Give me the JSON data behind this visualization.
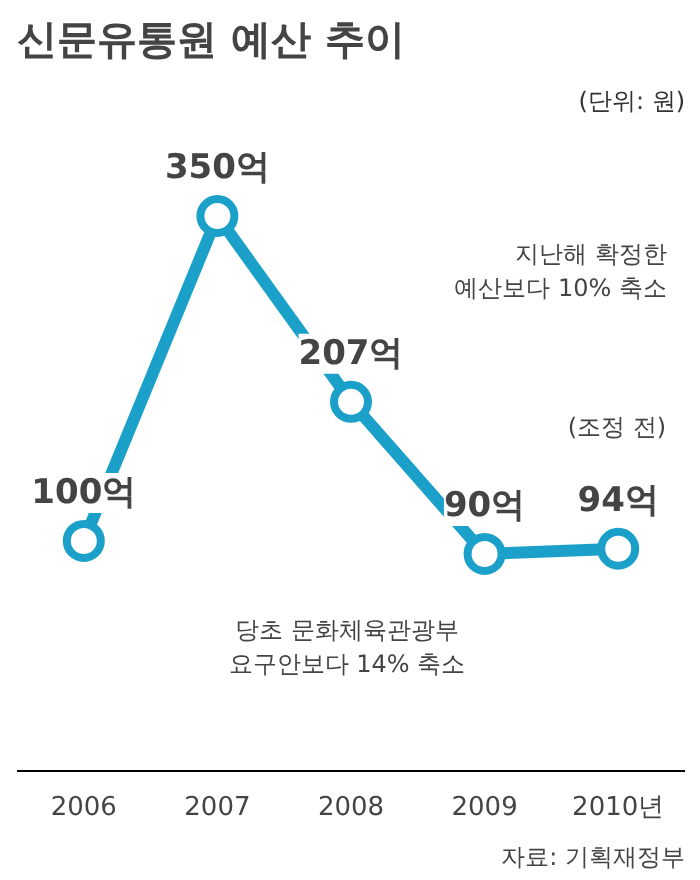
{
  "chart_data": {
    "type": "line",
    "title": "신문유통원 예산 추이",
    "subtitle": "(단위: 원)",
    "categories": [
      "2006",
      "2007",
      "2008",
      "2009",
      "2010년"
    ],
    "series": [
      {
        "color": "#1ba1c9",
        "values": [
          100,
          350,
          207,
          90,
          94
        ],
        "value_labels": [
          "100억",
          "350억",
          "207억",
          "90억",
          "94억"
        ]
      }
    ],
    "marker": "circle",
    "line_style": "solid",
    "grid": false,
    "annotations": [
      "지난해 확정한\n예산보다 10% 축소",
      "당초 문화체육관광부\n요구안보다 14% 축소",
      "(조정 전)",
      "자료: 기획재정부"
    ]
  }
}
